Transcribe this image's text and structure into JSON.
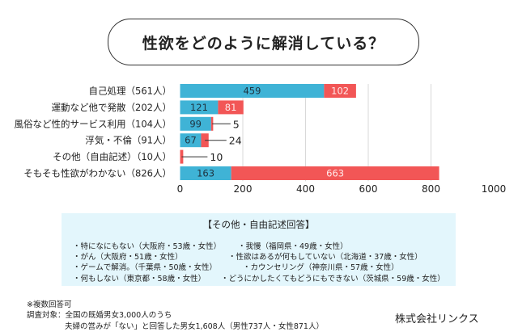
{
  "title": "性欲をどのように解消している？",
  "chart_data": {
    "type": "bar",
    "orientation": "horizontal",
    "stacked": true,
    "title": "性欲をどのように解消している？",
    "categories": [
      "自己処理（561人）",
      "運動など他で発散（202人）",
      "風俗など性的サービス利用（104人）",
      "浮気・不倫（91人）",
      "その他（自由記述）（10人）",
      "そもそも性欲がわかない（826人）"
    ],
    "series": [
      {
        "name": "",
        "color": "#3fb3d6",
        "values": [
          459,
          121,
          99,
          67,
          0,
          163
        ]
      },
      {
        "name": "",
        "color": "#f25656",
        "values": [
          102,
          81,
          5,
          24,
          10,
          663
        ]
      }
    ],
    "xlim": [
      0,
      1000
    ],
    "xticks": [
      "0",
      "200",
      "400",
      "600",
      "800",
      "1000"
    ],
    "xlabel": "",
    "ylabel": "",
    "grid": true,
    "legend": "none"
  },
  "notes": {
    "title": "【その他・自由記述回答】",
    "items": [
      "・特になにもない（大阪府・53歳・女性）",
      "・我慢（福岡県・49歳・女性）",
      "・がん（大阪府・51歳・女性）",
      "・性欲はあるが何もしていない（北海道・37歳・女性）",
      "・ゲームで解消。（千葉県・50歳・女性）",
      "・カウンセリング（神奈川県・57歳・女性）",
      "・何もしない（東京都・58歳・女性）",
      "・どうにかしたくてもどうにもできない（茨城県・59歳・女性）"
    ]
  },
  "footer": {
    "lines": [
      "※複数回答可",
      "調査対象：全国の既婚男女3,000人のうち",
      "夫婦の営みが「ない」と回答した男女1,608人（男性737人・女性871人）"
    ],
    "company": "株式会社リンクス"
  }
}
